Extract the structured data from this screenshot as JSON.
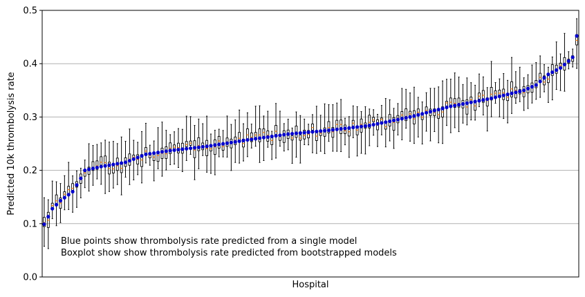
{
  "chart_data": {
    "type": "box",
    "xlabel": "Hospital",
    "ylabel": "Predicted 10k thrombolysis rate",
    "ylim": [
      0,
      0.5
    ],
    "yticks": [
      0.0,
      0.1,
      0.2,
      0.3,
      0.4,
      0.5
    ],
    "ytick_labels": [
      "0.0",
      "0.1",
      "0.2",
      "0.3",
      "0.4",
      "0.5"
    ],
    "grid": "horizontal",
    "annotations": [
      "Blue points show thrombolysis rate predicted from a single model",
      "Boxplot show show thrombolysis rate predicted from bootstrapped models"
    ],
    "colors": {
      "point": "#0000cc",
      "median": "#ff7f0e",
      "box": "#000000",
      "grid": "#b0b0b0"
    },
    "n_hospitals": 132,
    "point_anchors": [
      [
        0,
        0.099
      ],
      [
        1,
        0.113
      ],
      [
        2,
        0.128
      ],
      [
        4,
        0.143
      ],
      [
        7,
        0.16
      ],
      [
        9,
        0.185
      ],
      [
        10,
        0.2
      ],
      [
        14,
        0.207
      ],
      [
        20,
        0.215
      ],
      [
        25,
        0.23
      ],
      [
        31,
        0.237
      ],
      [
        40,
        0.245
      ],
      [
        50,
        0.257
      ],
      [
        60,
        0.268
      ],
      [
        70,
        0.275
      ],
      [
        80,
        0.284
      ],
      [
        90,
        0.3
      ],
      [
        100,
        0.32
      ],
      [
        110,
        0.335
      ],
      [
        118,
        0.35
      ],
      [
        121,
        0.36
      ],
      [
        124,
        0.38
      ],
      [
        127,
        0.392
      ],
      [
        129,
        0.405
      ],
      [
        130,
        0.412
      ],
      [
        131,
        0.452
      ]
    ]
  }
}
